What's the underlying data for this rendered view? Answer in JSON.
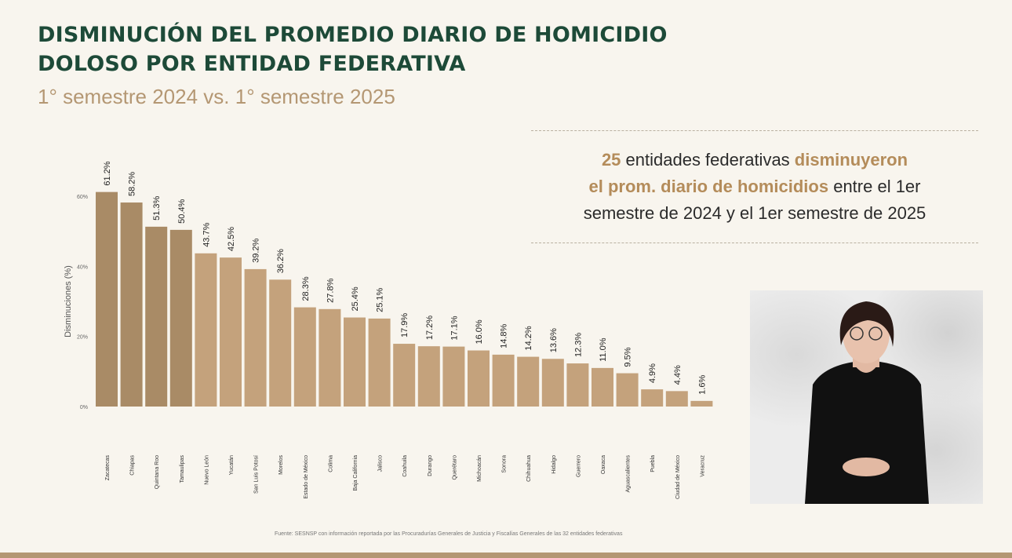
{
  "title_line1": "DISMINUCIÓN DEL PROMEDIO DIARIO DE HOMICIDIO",
  "title_line2": "DOLOSO POR ENTIDAD FEDERATIVA",
  "subtitle": "1° semestre 2024 vs. 1° semestre 2025",
  "callout": {
    "number": "25",
    "part1": " entidades federativas ",
    "highlight1": "disminuyeron",
    "highlight2": "el prom. diario de homicidios",
    "part2": " entre el 1er",
    "line3": "semestre de 2024 y el 1er semestre de 2025"
  },
  "source_note": "Fuente: SESNSP con información reportada por las Procuradurías Generales de Justicia y Fiscalías Generales de las 32 entidades federativas",
  "colors": {
    "bar_dark": "#a98b66",
    "bar_light": "#c4a27c",
    "title": "#1d4a38",
    "accent": "#b48c5a"
  },
  "chart_data": {
    "type": "bar",
    "ylabel": "Disminuciones (%)",
    "ylim": [
      0,
      60
    ],
    "yticks": [
      0,
      20,
      40,
      60
    ],
    "ytick_labels": [
      "0%",
      "20%",
      "40%",
      "60%"
    ],
    "categories": [
      "Zacatecas",
      "Chiapas",
      "Quintana Roo",
      "Tamaulipas",
      "Nuevo León",
      "Yucatán",
      "San Luis Potosí",
      "Morelos",
      "Estado de México",
      "Colima",
      "Baja California",
      "Jalisco",
      "Coahuila",
      "Durango",
      "Querétaro",
      "Michoacán",
      "Sonora",
      "Chihuahua",
      "Hidalgo",
      "Guerrero",
      "Oaxaca",
      "Aguascalientes",
      "Puebla",
      "Ciudad de México",
      "Veracruz"
    ],
    "values": [
      61.2,
      58.2,
      51.3,
      50.4,
      43.7,
      42.5,
      39.2,
      36.2,
      28.3,
      27.8,
      25.4,
      25.1,
      17.9,
      17.2,
      17.1,
      16.0,
      14.8,
      14.2,
      13.6,
      12.3,
      11.0,
      9.5,
      4.9,
      4.4,
      1.6
    ],
    "value_labels": [
      "61.2%",
      "58.2%",
      "51.3%",
      "50.4%",
      "43.7%",
      "42.5%",
      "39.2%",
      "36.2%",
      "28.3%",
      "27.8%",
      "25.4%",
      "25.1%",
      "17.9%",
      "17.2%",
      "17.1%",
      "16.0%",
      "14.8%",
      "14.2%",
      "13.6%",
      "12.3%",
      "11.0%",
      "9.5%",
      "4.9%",
      "4.4%",
      "1.6%"
    ],
    "highlighted_count": 4,
    "grid": false,
    "legend": "none"
  }
}
